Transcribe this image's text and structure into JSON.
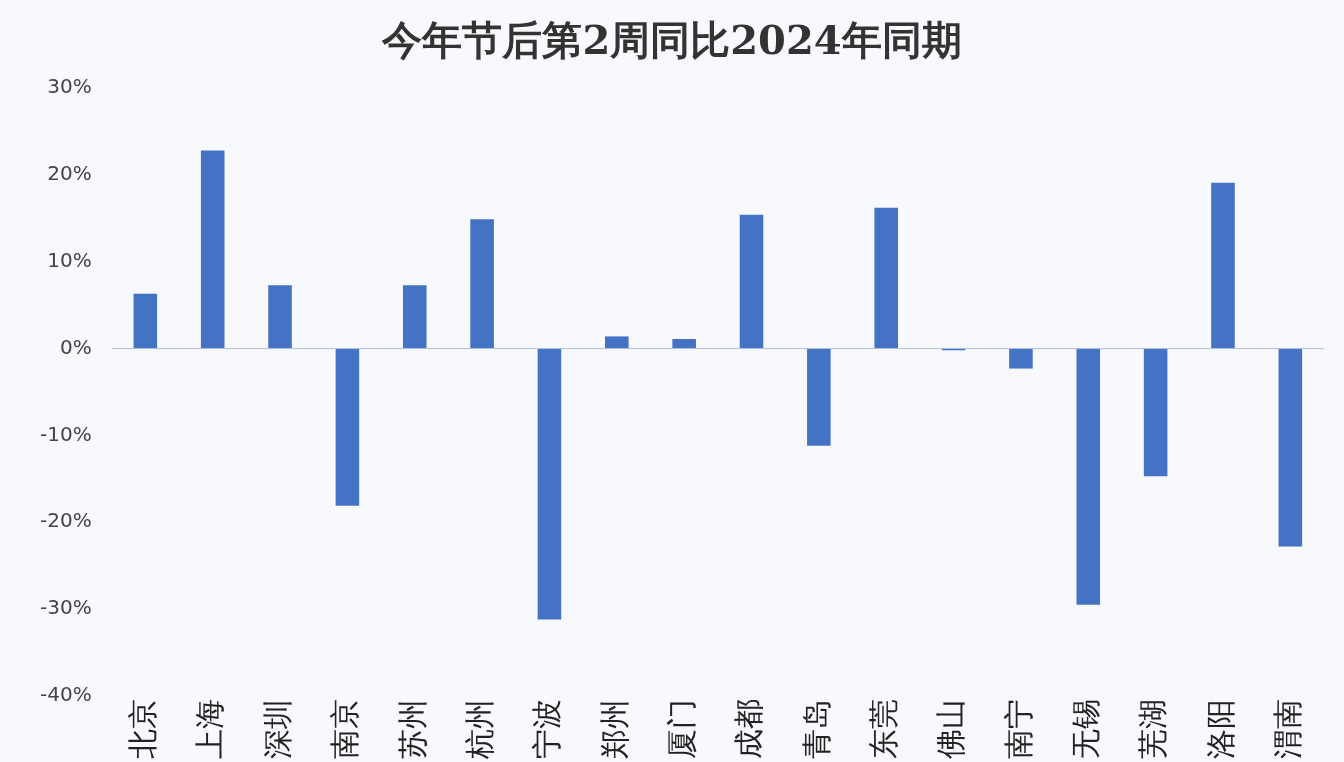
{
  "chart_data": {
    "type": "bar",
    "title": "今年节后第2周同比2024年同期",
    "categories": [
      "北京",
      "上海",
      "深圳",
      "南京",
      "苏州",
      "杭州",
      "宁波",
      "郑州",
      "厦门",
      "成都",
      "青岛",
      "东莞",
      "佛山",
      "南宁",
      "无锡",
      "芜湖",
      "洛阳",
      "渭南"
    ],
    "values": [
      6.3,
      22.8,
      7.3,
      -18.1,
      7.3,
      14.9,
      -31.2,
      1.4,
      1.1,
      15.4,
      -11.2,
      16.2,
      -0.2,
      -2.3,
      -29.5,
      -14.7,
      19.1,
      -22.8
    ],
    "color": "#4472c4",
    "ylim": [
      -40,
      30
    ],
    "yticks": [
      {
        "value": -40,
        "label": "-40%"
      },
      {
        "value": -30,
        "label": "-30%"
      },
      {
        "value": -20,
        "label": "-20%"
      },
      {
        "value": -10,
        "label": "-10%"
      },
      {
        "value": 0,
        "label": "0%"
      },
      {
        "value": 10,
        "label": "10%"
      },
      {
        "value": 20,
        "label": "20%"
      },
      {
        "value": 30,
        "label": "30%"
      }
    ],
    "ref_lines": [
      {
        "axis": "y",
        "value": 0,
        "color": "#aebfdc"
      }
    ],
    "grid": false,
    "legend": false
  }
}
